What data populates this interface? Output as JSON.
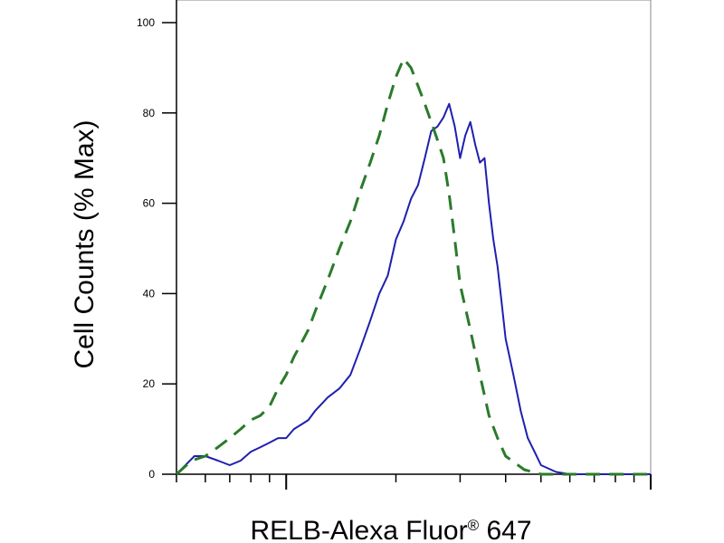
{
  "chart_data": {
    "type": "line",
    "title": "",
    "xlabel": "RELB-Alexa Fluor",
    "xlabel_superscript": "®",
    "xlabel_suffix": " 647",
    "ylabel": "Cell Counts (% Max)",
    "ylim": [
      0,
      100
    ],
    "yticks": [
      "0",
      "20",
      "40",
      "60",
      "80",
      "100"
    ],
    "xscale": "log",
    "xlim": [
      0.5,
      10
    ],
    "grid": false,
    "legend": "none",
    "series": [
      {
        "style": "solid",
        "color": "#1f1fb0",
        "x": [
          0.5,
          0.56,
          0.6,
          0.65,
          0.7,
          0.75,
          0.8,
          0.85,
          0.9,
          0.95,
          1.0,
          1.05,
          1.1,
          1.15,
          1.2,
          1.3,
          1.4,
          1.5,
          1.6,
          1.7,
          1.8,
          1.9,
          2.0,
          2.1,
          2.2,
          2.3,
          2.4,
          2.5,
          2.6,
          2.7,
          2.8,
          2.9,
          3.0,
          3.1,
          3.2,
          3.3,
          3.4,
          3.5,
          3.6,
          3.7,
          3.8,
          3.9,
          4.0,
          4.2,
          4.4,
          4.6,
          4.8,
          5.0,
          5.5,
          6.0,
          6.5,
          7.0,
          8.0,
          9.0,
          10.0
        ],
        "y": [
          0,
          4,
          4,
          3,
          2,
          3,
          5,
          6,
          7,
          8,
          8,
          10,
          11,
          12,
          14,
          17,
          19,
          22,
          28,
          34,
          40,
          44,
          52,
          56,
          61,
          64,
          70,
          76,
          77,
          79,
          82,
          77,
          70,
          75,
          78,
          73,
          69,
          70,
          60,
          52,
          46,
          38,
          30,
          22,
          14,
          8,
          5,
          2,
          0.5,
          0,
          0,
          0,
          0,
          0,
          0
        ]
      },
      {
        "style": "dashed",
        "color": "#2a7a2a",
        "x": [
          0.5,
          0.55,
          0.6,
          0.65,
          0.7,
          0.75,
          0.8,
          0.85,
          0.9,
          0.95,
          1.0,
          1.05,
          1.1,
          1.15,
          1.2,
          1.3,
          1.4,
          1.5,
          1.6,
          1.7,
          1.8,
          1.9,
          2.0,
          2.1,
          2.2,
          2.3,
          2.4,
          2.5,
          2.6,
          2.7,
          2.8,
          2.9,
          3.0,
          3.2,
          3.4,
          3.6,
          3.8,
          4.0,
          4.5,
          5.0,
          10.0
        ],
        "y": [
          0,
          3,
          4,
          6,
          8,
          10,
          12,
          13,
          15,
          19,
          22,
          26,
          29,
          32,
          36,
          43,
          50,
          56,
          63,
          69,
          75,
          82,
          88,
          92,
          90,
          86,
          82,
          78,
          74,
          70,
          62,
          52,
          42,
          32,
          22,
          13,
          8,
          4,
          1,
          0,
          0
        ]
      }
    ]
  }
}
